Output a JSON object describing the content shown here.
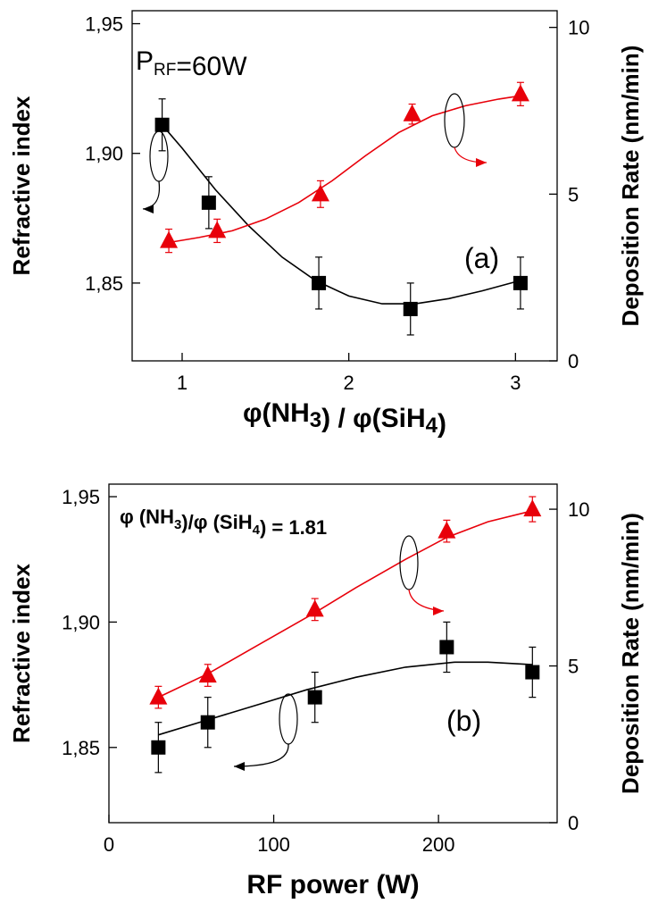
{
  "colors": {
    "refractive": "#000000",
    "deposition": "#e8000a",
    "frame": "#000000"
  },
  "chart_data": [
    {
      "id": "a",
      "type": "scatter",
      "xlabel_parts": [
        {
          "t": "φ(NH"
        },
        {
          "t": "3",
          "sub": true
        },
        {
          "t": ") / φ(SiH"
        },
        {
          "t": "4",
          "sub": true
        },
        {
          "t": ")"
        }
      ],
      "ylabel_left": "Refractive index",
      "ylabel_right": "Deposition Rate (nm/min)",
      "xlim": [
        0.7,
        3.25
      ],
      "ylim_left": [
        1.82,
        1.955
      ],
      "ylim_right": [
        0,
        10.5
      ],
      "xticks": [
        {
          "v": 1,
          "label": "1"
        },
        {
          "v": 2,
          "label": "2"
        },
        {
          "v": 3,
          "label": "3"
        }
      ],
      "yticks_left": [
        {
          "v": 1.85,
          "label": "1,85"
        },
        {
          "v": 1.9,
          "label": "1,90"
        },
        {
          "v": 1.95,
          "label": "1,95"
        }
      ],
      "yticks_right": [
        {
          "v": 0,
          "label": "0"
        },
        {
          "v": 5,
          "label": "5"
        },
        {
          "v": 10,
          "label": "10"
        }
      ],
      "annotation_parts": [
        {
          "t": "P"
        },
        {
          "t": "RF",
          "sub": true
        },
        {
          "t": "=60W"
        }
      ],
      "panel_label": "(a)",
      "series": [
        {
          "name": "Refractive index",
          "axis": "left",
          "marker": "square",
          "x": [
            0.88,
            1.16,
            1.82,
            2.37,
            3.03
          ],
          "y": [
            1.911,
            1.881,
            1.85,
            1.84,
            1.85
          ],
          "err": [
            0.01,
            0.01,
            0.01,
            0.01,
            0.01
          ],
          "fit_x": [
            0.88,
            1.0,
            1.2,
            1.4,
            1.6,
            1.8,
            2.0,
            2.2,
            2.4,
            2.6,
            2.8,
            3.03
          ],
          "fit_y": [
            1.911,
            1.902,
            1.886,
            1.872,
            1.86,
            1.851,
            1.845,
            1.842,
            1.842,
            1.844,
            1.847,
            1.851
          ]
        },
        {
          "name": "Deposition Rate",
          "axis": "right",
          "marker": "triangle",
          "x": [
            0.92,
            1.21,
            1.83,
            2.38,
            3.03
          ],
          "y": [
            3.6,
            3.9,
            5.0,
            7.4,
            8.0
          ],
          "err": [
            0.35,
            0.35,
            0.4,
            0.3,
            0.35
          ],
          "fit_x": [
            0.92,
            1.1,
            1.3,
            1.5,
            1.7,
            1.9,
            2.1,
            2.3,
            2.5,
            2.7,
            2.9,
            3.03
          ],
          "fit_y": [
            3.55,
            3.7,
            3.9,
            4.25,
            4.75,
            5.4,
            6.15,
            6.85,
            7.35,
            7.65,
            7.85,
            7.95
          ]
        }
      ]
    },
    {
      "id": "b",
      "type": "scatter",
      "xlabel_parts": [
        {
          "t": "RF power (W)"
        }
      ],
      "ylabel_left": "Refractive index",
      "ylabel_right": "Deposition Rate (nm/min)",
      "xlim": [
        0,
        272
      ],
      "ylim_left": [
        1.82,
        1.955
      ],
      "ylim_right": [
        0,
        10.8
      ],
      "xticks": [
        {
          "v": 0,
          "label": "0"
        },
        {
          "v": 100,
          "label": "100"
        },
        {
          "v": 200,
          "label": "200"
        }
      ],
      "yticks_left": [
        {
          "v": 1.85,
          "label": "1,85"
        },
        {
          "v": 1.9,
          "label": "1,90"
        },
        {
          "v": 1.95,
          "label": "1,95"
        }
      ],
      "yticks_right": [
        {
          "v": 0,
          "label": "0"
        },
        {
          "v": 5,
          "label": "5"
        },
        {
          "v": 10,
          "label": "10"
        }
      ],
      "annotation_parts": [
        {
          "t": "φ (NH"
        },
        {
          "t": "3",
          "sub": true
        },
        {
          "t": ")/φ (SiH"
        },
        {
          "t": "4",
          "sub": true
        },
        {
          "t": ") = 1.81"
        }
      ],
      "panel_label": "(b)",
      "series": [
        {
          "name": "Refractive index",
          "axis": "left",
          "marker": "square",
          "x": [
            30,
            60,
            125,
            205,
            257
          ],
          "y": [
            1.85,
            1.86,
            1.87,
            1.89,
            1.88
          ],
          "err": [
            0.01,
            0.01,
            0.01,
            0.01,
            0.01
          ],
          "fit_x": [
            30,
            60,
            90,
            120,
            150,
            180,
            210,
            230,
            257
          ],
          "fit_y": [
            1.855,
            1.861,
            1.867,
            1.873,
            1.878,
            1.882,
            1.884,
            1.884,
            1.883
          ]
        },
        {
          "name": "Deposition Rate",
          "axis": "right",
          "marker": "triangle",
          "x": [
            30,
            60,
            125,
            205,
            257
          ],
          "y": [
            4.0,
            4.7,
            6.8,
            9.3,
            10.0
          ],
          "err": [
            0.35,
            0.35,
            0.35,
            0.35,
            0.4
          ],
          "fit_x": [
            30,
            60,
            90,
            125,
            150,
            180,
            205,
            230,
            257
          ],
          "fit_y": [
            4.0,
            4.75,
            5.65,
            6.7,
            7.5,
            8.4,
            9.1,
            9.6,
            9.95
          ]
        }
      ]
    }
  ]
}
